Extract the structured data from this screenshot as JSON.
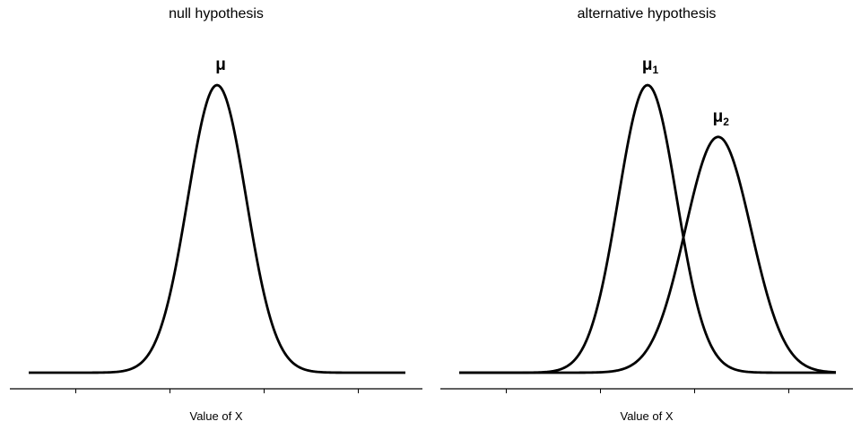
{
  "chart_data": [
    {
      "type": "line",
      "title": "null hypothesis",
      "xlabel": "Value of X",
      "ylabel": "",
      "xlim": [
        -4,
        4
      ],
      "ylim": [
        0,
        1
      ],
      "x_ticks": [
        -3,
        -1,
        1,
        3
      ],
      "tick_labels_visible": false,
      "grid": false,
      "series": [
        {
          "label": "μ",
          "subscript": "",
          "mean": 0,
          "sd": 0.62,
          "amplitude": 1.0
        }
      ]
    },
    {
      "type": "line",
      "title": "alternative hypothesis",
      "xlabel": "Value of X",
      "ylabel": "",
      "xlim": [
        -4,
        4
      ],
      "ylim": [
        0,
        1
      ],
      "x_ticks": [
        -3,
        -1,
        1,
        3
      ],
      "tick_labels_visible": false,
      "grid": false,
      "series": [
        {
          "label": "μ",
          "subscript": "1",
          "mean": 0,
          "sd": 0.62,
          "amplitude": 1.0
        },
        {
          "label": "μ",
          "subscript": "2",
          "mean": 1.5,
          "sd": 0.7,
          "amplitude": 0.82
        }
      ]
    }
  ]
}
